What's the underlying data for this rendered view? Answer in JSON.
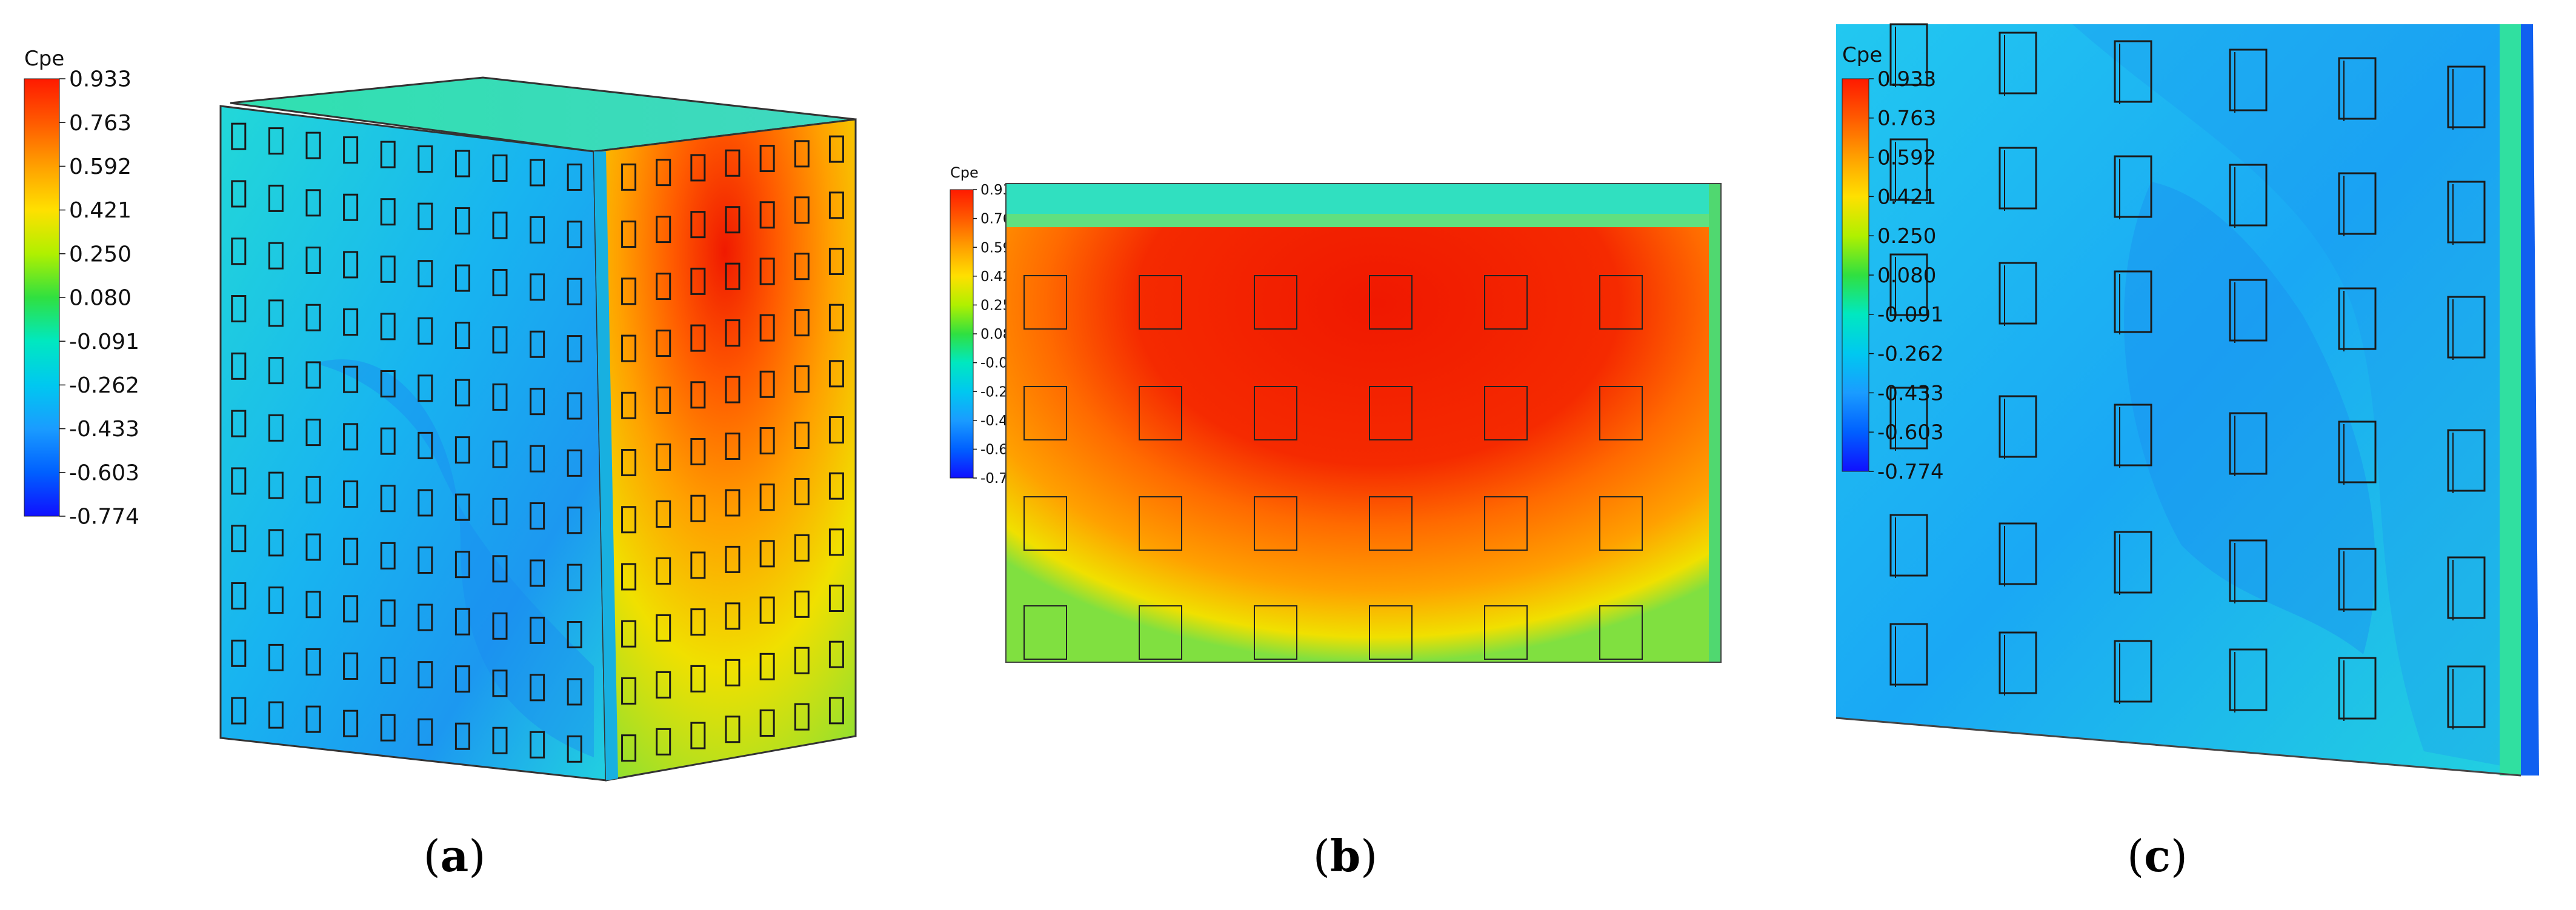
{
  "colorbar": {
    "title": "Cpe",
    "ticks": [
      "0.933",
      "0.763",
      "0.592",
      "0.421",
      "0.250",
      "0.080",
      "-0.091",
      "-0.262",
      "-0.433",
      "-0.603",
      "-0.774"
    ],
    "colors": [
      "#ff2000",
      "#ff6a00",
      "#ffa800",
      "#ffe000",
      "#c8ff00",
      "#30e030",
      "#00e8c0",
      "#00c8f0",
      "#1a9cff",
      "#0060ff",
      "#1010ff"
    ]
  },
  "captions": {
    "a": {
      "open": "(",
      "letter": "a",
      "close": ")"
    },
    "b": {
      "open": "(",
      "letter": "b",
      "close": ")"
    },
    "c": {
      "open": "(",
      "letter": "c",
      "close": ")"
    }
  }
}
